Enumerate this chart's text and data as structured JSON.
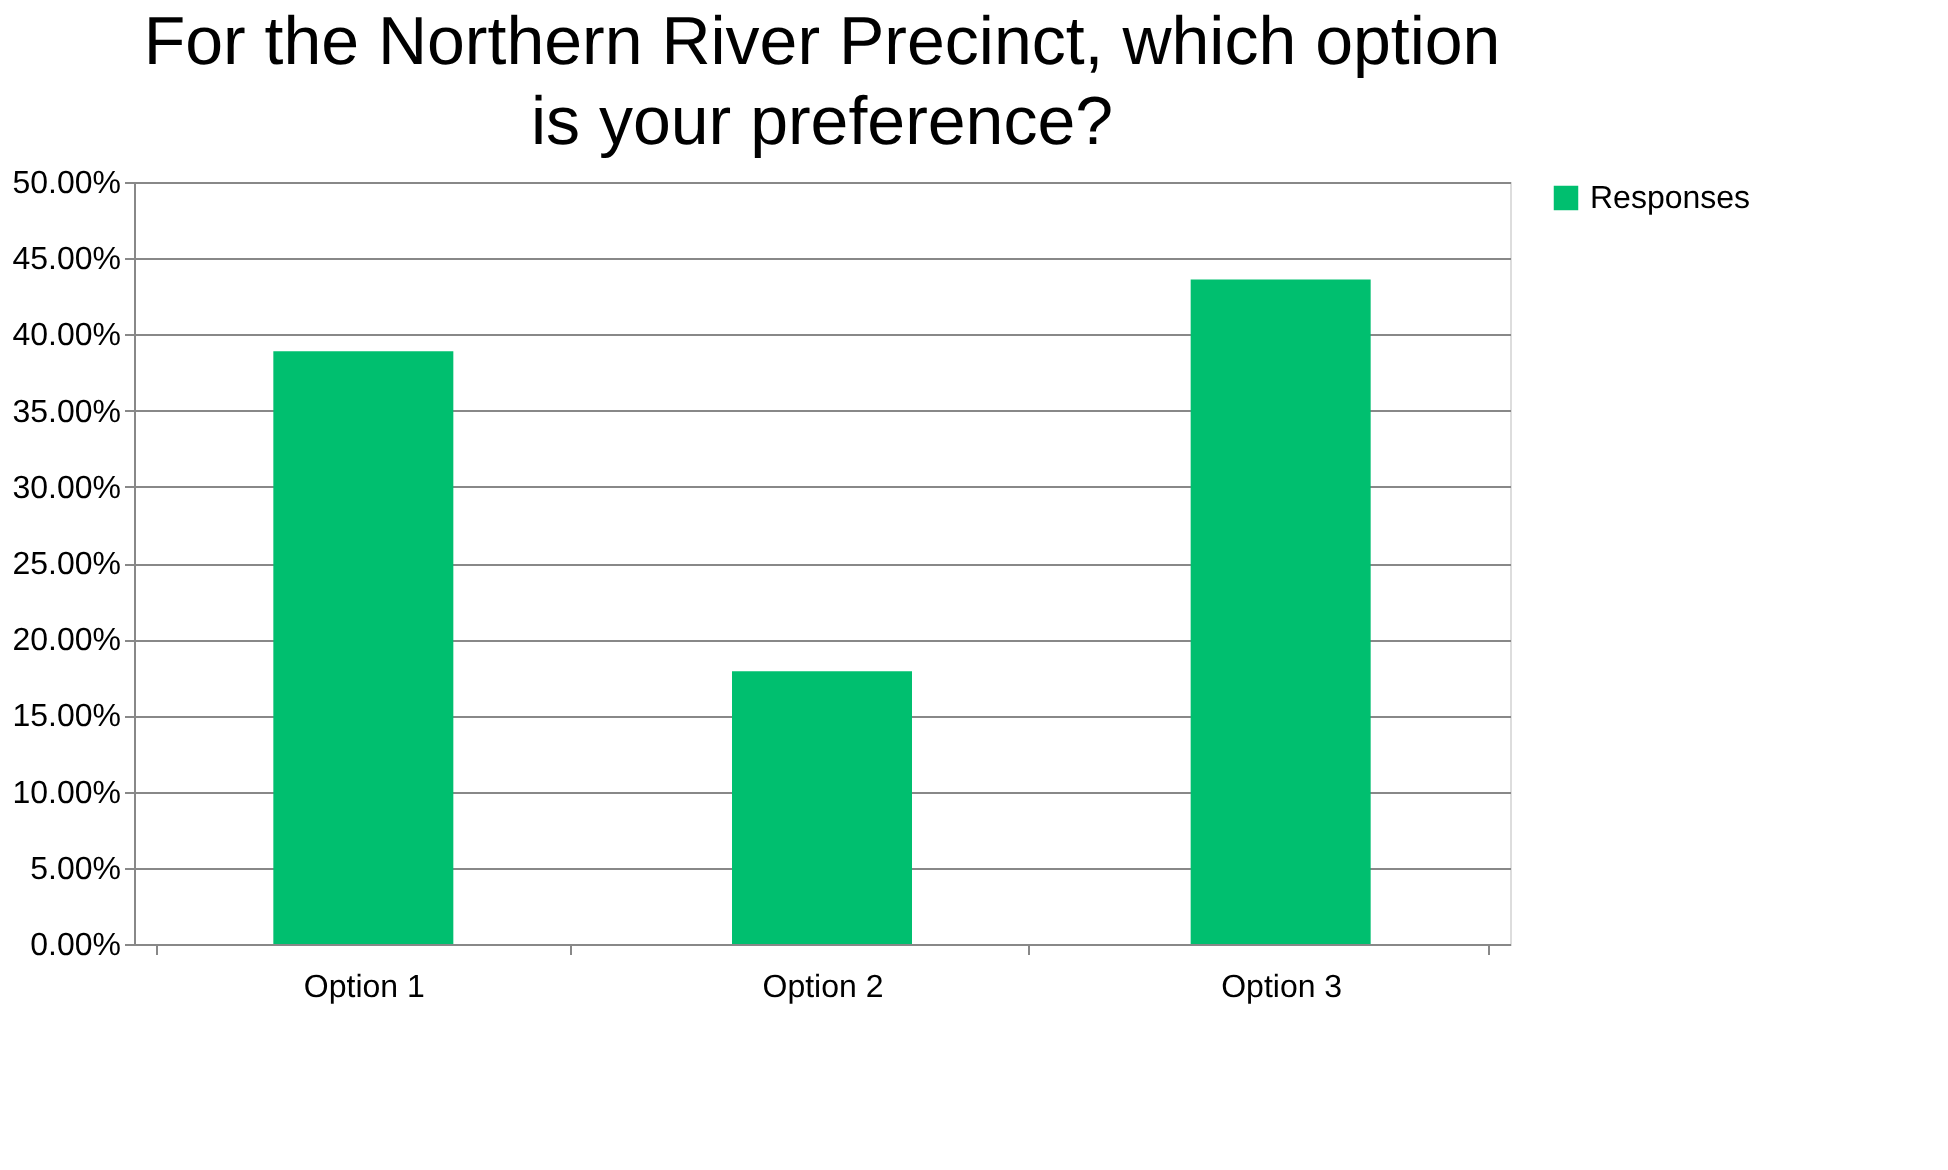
{
  "chart_data": {
    "type": "bar",
    "title": "For the Northern River Precinct, which option is your preference?",
    "categories": [
      "Option 1",
      "Option 2",
      "Option 3"
    ],
    "series": [
      {
        "name": "Responses",
        "color": "#00bf6f",
        "values": [
          38.9,
          17.9,
          43.6
        ]
      }
    ],
    "ylim": [
      0,
      50
    ],
    "yticks": [
      {
        "value": 0,
        "label": "0.00%"
      },
      {
        "value": 5,
        "label": "5.00%"
      },
      {
        "value": 10,
        "label": "10.00%"
      },
      {
        "value": 15,
        "label": "15.00%"
      },
      {
        "value": 20,
        "label": "20.00%"
      },
      {
        "value": 25,
        "label": "25.00%"
      },
      {
        "value": 30,
        "label": "30.00%"
      },
      {
        "value": 35,
        "label": "35.00%"
      },
      {
        "value": 40,
        "label": "40.00%"
      },
      {
        "value": 45,
        "label": "45.00%"
      },
      {
        "value": 50,
        "label": "50.00%"
      }
    ],
    "grid": "y",
    "legend": "right"
  }
}
